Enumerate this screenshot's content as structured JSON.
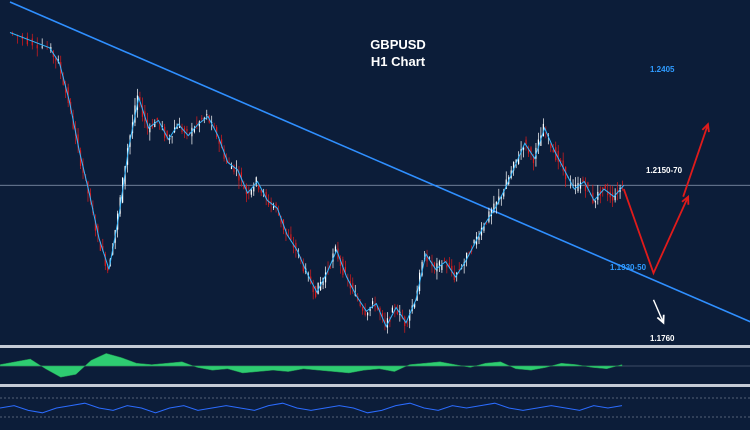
{
  "chart_data": {
    "type": "candlestick",
    "title": "GBPUSD",
    "subtitle": "H1 Chart",
    "grid": false,
    "price_levels": [
      {
        "label": "1.2405",
        "value": 1.2405,
        "color": "#2f9bff"
      },
      {
        "label": "1.2150-70",
        "value": 1.216,
        "color": "#ffffff"
      },
      {
        "label": "1.1930-50",
        "value": 1.194,
        "color": "#2f9bff"
      },
      {
        "label": "1.1760",
        "value": 1.176,
        "color": "#ffffff"
      }
    ],
    "price_path": [
      [
        0,
        1.256
      ],
      [
        4,
        1.254
      ],
      [
        8,
        1.252
      ],
      [
        10,
        1.248
      ],
      [
        12,
        1.238
      ],
      [
        14,
        1.225
      ],
      [
        16,
        1.214
      ],
      [
        18,
        1.202
      ],
      [
        20,
        1.194
      ],
      [
        22,
        1.208
      ],
      [
        24,
        1.226
      ],
      [
        26,
        1.239
      ],
      [
        28,
        1.231
      ],
      [
        30,
        1.233
      ],
      [
        32,
        1.228
      ],
      [
        34,
        1.232
      ],
      [
        36,
        1.229
      ],
      [
        38,
        1.232
      ],
      [
        40,
        1.234
      ],
      [
        42,
        1.229
      ],
      [
        44,
        1.222
      ],
      [
        46,
        1.22
      ],
      [
        48,
        1.214
      ],
      [
        50,
        1.217
      ],
      [
        52,
        1.212
      ],
      [
        54,
        1.21
      ],
      [
        56,
        1.203
      ],
      [
        58,
        1.199
      ],
      [
        60,
        1.193
      ],
      [
        62,
        1.188
      ],
      [
        64,
        1.193
      ],
      [
        66,
        1.199
      ],
      [
        68,
        1.192
      ],
      [
        70,
        1.187
      ],
      [
        72,
        1.183
      ],
      [
        74,
        1.185
      ],
      [
        76,
        1.179
      ],
      [
        78,
        1.184
      ],
      [
        80,
        1.18
      ],
      [
        82,
        1.186
      ],
      [
        84,
        1.198
      ],
      [
        86,
        1.194
      ],
      [
        88,
        1.196
      ],
      [
        90,
        1.192
      ],
      [
        92,
        1.196
      ],
      [
        94,
        1.201
      ],
      [
        96,
        1.206
      ],
      [
        98,
        1.21
      ],
      [
        100,
        1.215
      ],
      [
        102,
        1.221
      ],
      [
        104,
        1.227
      ],
      [
        106,
        1.223
      ],
      [
        108,
        1.231
      ],
      [
        110,
        1.225
      ],
      [
        112,
        1.22
      ],
      [
        114,
        1.215
      ],
      [
        116,
        1.217
      ],
      [
        118,
        1.212
      ],
      [
        120,
        1.215
      ],
      [
        122,
        1.213
      ],
      [
        124,
        1.216
      ]
    ],
    "trendline": {
      "from": [
        0,
        1.264
      ],
      "to": [
        150,
        1.18
      ]
    },
    "projection_red": [
      [
        124,
        1.215
      ],
      [
        130,
        1.193
      ],
      [
        137,
        1.213
      ]
    ],
    "projection_red_up": [
      [
        136,
        1.213
      ],
      [
        141,
        1.232
      ]
    ],
    "projection_white": [
      [
        130,
        1.186
      ],
      [
        132,
        1.18
      ]
    ],
    "oscillator_values": [
      0.1,
      0.3,
      0.5,
      -0.2,
      -0.8,
      -0.6,
      0.4,
      0.9,
      0.6,
      0.2,
      0.1,
      0.2,
      0.3,
      -0.1,
      -0.3,
      -0.2,
      -0.5,
      -0.4,
      -0.3,
      -0.4,
      -0.2,
      -0.3,
      -0.4,
      -0.5,
      -0.3,
      -0.2,
      -0.4,
      0.1,
      0.2,
      0.3,
      0.1,
      -0.1,
      0.2,
      0.3,
      -0.2,
      -0.3,
      -0.1,
      0.2,
      0.1,
      -0.1,
      -0.2,
      0.1
    ],
    "rsi_values": [
      0.5,
      0.6,
      0.4,
      0.3,
      0.5,
      0.6,
      0.7,
      0.5,
      0.4,
      0.6,
      0.5,
      0.3,
      0.5,
      0.6,
      0.4,
      0.5,
      0.6,
      0.5,
      0.4,
      0.6,
      0.7,
      0.5,
      0.4,
      0.5,
      0.6,
      0.5,
      0.3,
      0.4,
      0.6,
      0.7,
      0.5,
      0.4,
      0.6,
      0.5,
      0.6,
      0.7,
      0.5,
      0.4,
      0.5,
      0.6,
      0.5,
      0.4,
      0.6,
      0.5,
      0.6
    ]
  }
}
